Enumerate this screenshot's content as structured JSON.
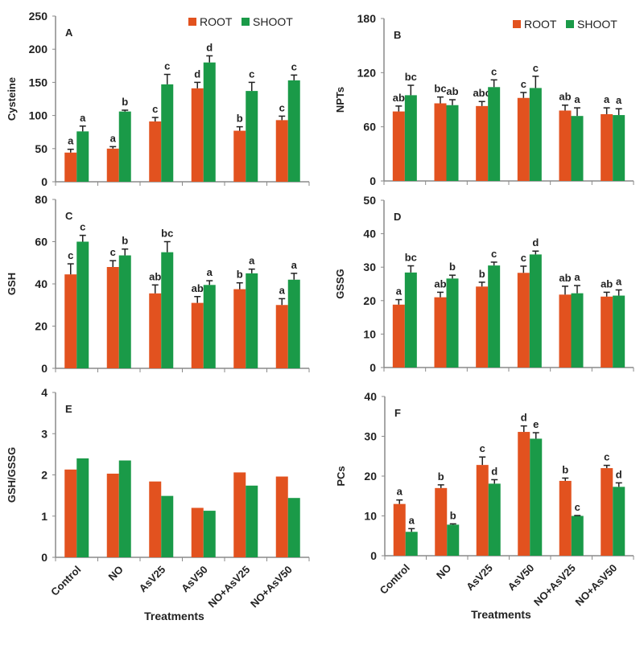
{
  "chart_data": [
    {
      "type": "bar",
      "panel": "A",
      "ylabel": "Cysteine",
      "ylim": [
        0,
        250
      ],
      "yticks": [
        0,
        50,
        100,
        150,
        200,
        250
      ],
      "categories": [
        "Control",
        "NO",
        "AsV25",
        "AsV50",
        "NO+AsV25",
        "NO+AsV50"
      ],
      "legend": [
        "ROOT",
        "SHOOT"
      ],
      "series": [
        {
          "name": "ROOT",
          "values": [
            44,
            50,
            91,
            141,
            77,
            93
          ],
          "errors": [
            5,
            3,
            6,
            9,
            6,
            6
          ],
          "letters": [
            "a",
            "a",
            "c",
            "d",
            "b",
            "c"
          ]
        },
        {
          "name": "SHOOT",
          "values": [
            76,
            106,
            147,
            180,
            137,
            153
          ],
          "errors": [
            8,
            2,
            15,
            10,
            13,
            8
          ],
          "letters": [
            "a",
            "b",
            "c",
            "d",
            "c",
            "c"
          ]
        }
      ]
    },
    {
      "type": "bar",
      "panel": "B",
      "ylabel": "NPTs",
      "ylim": [
        0,
        180
      ],
      "yticks": [
        0,
        60,
        120,
        180
      ],
      "categories": [
        "Control",
        "NO",
        "AsV25",
        "AsV50",
        "NO+AsV25",
        "NO+AsV50"
      ],
      "legend": [
        "ROOT",
        "SHOOT"
      ],
      "series": [
        {
          "name": "ROOT",
          "values": [
            77,
            86,
            83,
            92,
            78,
            74
          ],
          "errors": [
            6,
            7,
            5,
            6,
            6,
            7
          ],
          "letters": [
            "ab",
            "bc",
            "abc",
            "c",
            "ab",
            "a"
          ]
        },
        {
          "name": "SHOOT",
          "values": [
            95,
            84,
            104,
            103,
            72,
            73
          ],
          "errors": [
            11,
            6,
            8,
            13,
            9,
            7
          ],
          "letters": [
            "bc",
            "ab",
            "c",
            "c",
            "a",
            "a"
          ]
        }
      ]
    },
    {
      "type": "bar",
      "panel": "C",
      "ylabel": "GSH",
      "ylim": [
        0,
        80
      ],
      "yticks": [
        0,
        20,
        40,
        60,
        80
      ],
      "categories": [
        "Control",
        "NO",
        "AsV25",
        "AsV50",
        "NO+AsV25",
        "NO+AsV50"
      ],
      "series": [
        {
          "name": "ROOT",
          "values": [
            44.5,
            48,
            35.5,
            31,
            37.5,
            30
          ],
          "errors": [
            5,
            3,
            4,
            3,
            3,
            3
          ],
          "letters": [
            "c",
            "c",
            "ab",
            "ab",
            "b",
            "a"
          ]
        },
        {
          "name": "SHOOT",
          "values": [
            60,
            53.5,
            55,
            39.5,
            45,
            42
          ],
          "errors": [
            3,
            3,
            5,
            2,
            2,
            3
          ],
          "letters": [
            "c",
            "b",
            "bc",
            "a",
            "a",
            "a"
          ]
        }
      ]
    },
    {
      "type": "bar",
      "panel": "D",
      "ylabel": "GSSG",
      "ylim": [
        0,
        50
      ],
      "yticks": [
        0,
        10,
        20,
        30,
        40,
        50
      ],
      "categories": [
        "Control",
        "NO",
        "AsV25",
        "AsV50",
        "NO+AsV25",
        "NO+AsV50"
      ],
      "series": [
        {
          "name": "ROOT",
          "values": [
            18.8,
            21,
            24.2,
            28.3,
            21.8,
            21.2
          ],
          "errors": [
            1.5,
            1.5,
            1.3,
            2,
            2.5,
            1.3
          ],
          "letters": [
            "a",
            "ab",
            "b",
            "c",
            "ab",
            "ab"
          ]
        },
        {
          "name": "SHOOT",
          "values": [
            28.4,
            26.6,
            30.5,
            33.8,
            22.2,
            21.5
          ],
          "errors": [
            2,
            1,
            1,
            1,
            2.3,
            1.7
          ],
          "letters": [
            "bc",
            "b",
            "c",
            "d",
            "a",
            "a"
          ]
        }
      ]
    },
    {
      "type": "bar",
      "panel": "E",
      "ylabel": "GSH/GSSG",
      "xlabel": "Treatments",
      "ylim": [
        0,
        4
      ],
      "yticks": [
        0,
        1,
        2,
        3,
        4
      ],
      "categories": [
        "Control",
        "NO",
        "AsV25",
        "AsV50",
        "NO+AsV25",
        "NO+AsV50"
      ],
      "series": [
        {
          "name": "ROOT",
          "values": [
            2.13,
            2.03,
            1.84,
            1.2,
            2.06,
            1.96
          ],
          "errors": [],
          "letters": []
        },
        {
          "name": "SHOOT",
          "values": [
            2.4,
            2.35,
            1.49,
            1.13,
            1.74,
            1.44
          ],
          "errors": [],
          "letters": []
        }
      ]
    },
    {
      "type": "bar",
      "panel": "F",
      "ylabel": "PCs",
      "xlabel": "Treatments",
      "ylim": [
        0,
        40
      ],
      "yticks": [
        0,
        10,
        20,
        30,
        40
      ],
      "categories": [
        "Control",
        "NO",
        "AsV25",
        "AsV50",
        "NO+AsV25",
        "NO+AsV50"
      ],
      "series": [
        {
          "name": "ROOT",
          "values": [
            13,
            17,
            22.8,
            31.1,
            18.8,
            22
          ],
          "errors": [
            1,
            0.8,
            2,
            1.5,
            0.7,
            0.7
          ],
          "letters": [
            "a",
            "b",
            "c",
            "d",
            "b",
            "c"
          ]
        },
        {
          "name": "SHOOT",
          "values": [
            6,
            7.8,
            18.1,
            29.4,
            10,
            17.3
          ],
          "errors": [
            0.8,
            0.2,
            1,
            1.5,
            0.1,
            1
          ],
          "letters": [
            "a",
            "b",
            "d",
            "e",
            "c",
            "d"
          ]
        }
      ]
    }
  ],
  "colors": {
    "ROOT": "#E2521F",
    "SHOOT": "#1A9A48",
    "axis": "#8a8a8a"
  }
}
